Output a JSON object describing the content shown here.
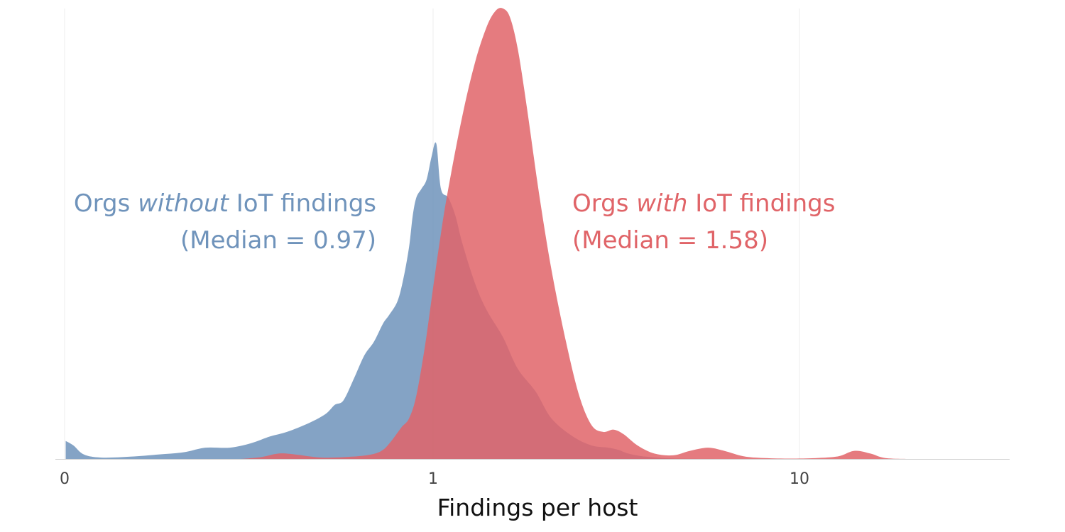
{
  "chart_data": {
    "type": "area",
    "title": "",
    "xlabel": "Findings per host",
    "ylabel": "",
    "x_scale": "log",
    "x_ticks": [
      "0",
      "1",
      "10"
    ],
    "xlim": [
      0.1,
      30
    ],
    "grid": "vertical lines at ticks",
    "legend": "none (direct labels)",
    "series": [
      {
        "name": "Orgs without IoT findings",
        "color": "#6f93bb",
        "annotation": {
          "prefix": "Orgs ",
          "emph": "without",
          "suffix": " IoT findings",
          "median_label": "(Median = 0.97)",
          "align": "right"
        },
        "points": [
          [
            0.1,
            0.04
          ],
          [
            0.105,
            0.03
          ],
          [
            0.112,
            0.01
          ],
          [
            0.125,
            0.003
          ],
          [
            0.15,
            0.005
          ],
          [
            0.18,
            0.01
          ],
          [
            0.21,
            0.015
          ],
          [
            0.24,
            0.025
          ],
          [
            0.28,
            0.025
          ],
          [
            0.32,
            0.035
          ],
          [
            0.36,
            0.05
          ],
          [
            0.4,
            0.06
          ],
          [
            0.46,
            0.08
          ],
          [
            0.51,
            0.1
          ],
          [
            0.54,
            0.12
          ],
          [
            0.57,
            0.13
          ],
          [
            0.61,
            0.18
          ],
          [
            0.65,
            0.23
          ],
          [
            0.69,
            0.26
          ],
          [
            0.73,
            0.3
          ],
          [
            0.76,
            0.32
          ],
          [
            0.8,
            0.35
          ],
          [
            0.83,
            0.4
          ],
          [
            0.86,
            0.47
          ],
          [
            0.88,
            0.54
          ],
          [
            0.9,
            0.58
          ],
          [
            0.93,
            0.6
          ],
          [
            0.96,
            0.62
          ],
          [
            0.99,
            0.67
          ],
          [
            1.02,
            0.7
          ],
          [
            1.05,
            0.6
          ],
          [
            1.1,
            0.58
          ],
          [
            1.15,
            0.54
          ],
          [
            1.2,
            0.48
          ],
          [
            1.3,
            0.39
          ],
          [
            1.4,
            0.33
          ],
          [
            1.55,
            0.27
          ],
          [
            1.7,
            0.2
          ],
          [
            1.9,
            0.15
          ],
          [
            2.1,
            0.09
          ],
          [
            2.4,
            0.05
          ],
          [
            2.7,
            0.03
          ],
          [
            3.0,
            0.025
          ],
          [
            3.2,
            0.02
          ],
          [
            3.4,
            0.012
          ],
          [
            3.8,
            0.005
          ],
          [
            4.5,
            0.001
          ],
          [
            6.0,
            0.0
          ]
        ]
      },
      {
        "name": "Orgs with IoT findings",
        "color": "#e06468",
        "annotation": {
          "prefix": "Orgs ",
          "emph": "with",
          "suffix": " IoT findings",
          "median_label": "(Median = 1.58)",
          "align": "left"
        },
        "points": [
          [
            0.3,
            0.0
          ],
          [
            0.34,
            0.004
          ],
          [
            0.38,
            0.012
          ],
          [
            0.42,
            0.01
          ],
          [
            0.5,
            0.003
          ],
          [
            0.6,
            0.005
          ],
          [
            0.68,
            0.01
          ],
          [
            0.73,
            0.02
          ],
          [
            0.77,
            0.04
          ],
          [
            0.82,
            0.07
          ],
          [
            0.86,
            0.09
          ],
          [
            0.9,
            0.14
          ],
          [
            0.95,
            0.25
          ],
          [
            1.0,
            0.38
          ],
          [
            1.05,
            0.5
          ],
          [
            1.1,
            0.6
          ],
          [
            1.2,
            0.76
          ],
          [
            1.3,
            0.88
          ],
          [
            1.4,
            0.96
          ],
          [
            1.48,
            0.995
          ],
          [
            1.55,
            1.0
          ],
          [
            1.62,
            0.98
          ],
          [
            1.7,
            0.91
          ],
          [
            1.8,
            0.78
          ],
          [
            1.95,
            0.58
          ],
          [
            2.1,
            0.42
          ],
          [
            2.3,
            0.26
          ],
          [
            2.5,
            0.14
          ],
          [
            2.7,
            0.075
          ],
          [
            2.9,
            0.06
          ],
          [
            3.1,
            0.065
          ],
          [
            3.3,
            0.055
          ],
          [
            3.6,
            0.03
          ],
          [
            4.0,
            0.012
          ],
          [
            4.5,
            0.008
          ],
          [
            5.0,
            0.018
          ],
          [
            5.6,
            0.025
          ],
          [
            6.2,
            0.018
          ],
          [
            7.0,
            0.006
          ],
          [
            8.0,
            0.002
          ],
          [
            10.0,
            0.001
          ],
          [
            12.5,
            0.005
          ],
          [
            14.0,
            0.018
          ],
          [
            15.5,
            0.012
          ],
          [
            17.0,
            0.002
          ],
          [
            20.0,
            0.0
          ]
        ]
      }
    ]
  }
}
